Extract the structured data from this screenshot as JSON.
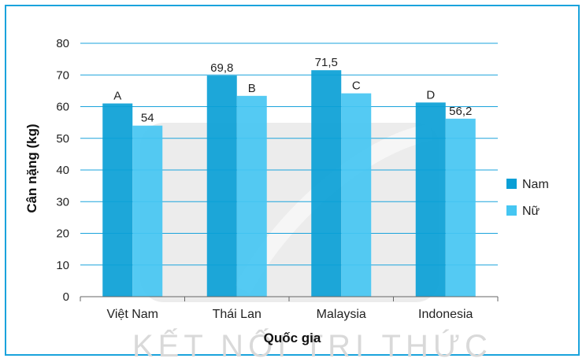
{
  "chart_data": {
    "type": "bar",
    "categories": [
      "Việt Nam",
      "Thái Lan",
      "Malaysia",
      "Indonesia"
    ],
    "series": [
      {
        "name": "Nam",
        "color": "#0a9fd6",
        "values": [
          61,
          69.8,
          71.5,
          61.3
        ],
        "labels": [
          "A",
          "69,8",
          "71,5",
          "D"
        ]
      },
      {
        "name": "Nữ",
        "color": "#45c6f2",
        "values": [
          54,
          63.4,
          64.2,
          56.2
        ],
        "labels": [
          "54",
          "B",
          "C",
          "56,2"
        ]
      }
    ],
    "ylabel": "Cân nặng (kg)",
    "xlabel": "Quốc gia",
    "ylim": [
      0,
      80
    ],
    "yticks": [
      "0",
      "10",
      "20",
      "30",
      "40",
      "50",
      "60",
      "70",
      "80"
    ],
    "grid": true,
    "legend_position": "right"
  },
  "watermark": {
    "text": "KẾT NỐI TRI THỨC"
  }
}
